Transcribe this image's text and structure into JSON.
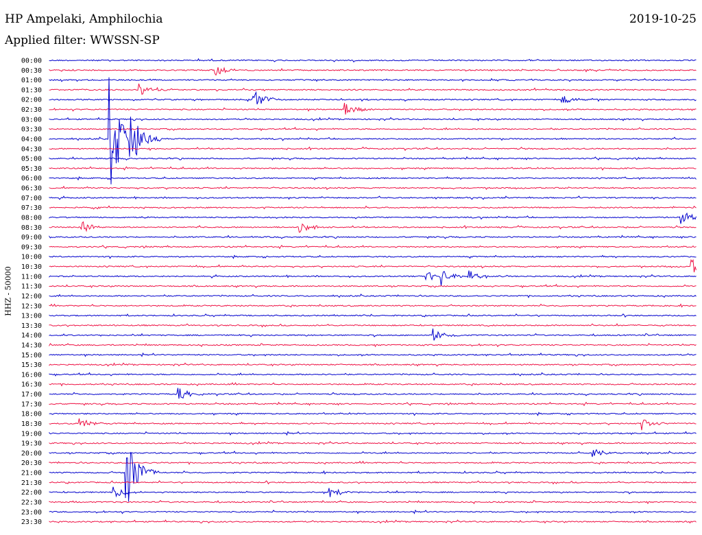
{
  "header": {
    "station": "HP Ampelaki, Amphilochia",
    "filter": "Applied filter: WWSSN-SP",
    "date": "2019-10-25"
  },
  "chart_data": {
    "type": "line",
    "title": "HP Ampelaki, Amphilochia",
    "subtitle": "Applied filter: WWSSN-SP",
    "ylabel": "HHZ - 50000",
    "colors": {
      "even": "#0000cc",
      "odd": "#ee1144"
    },
    "rows": [
      "00:00",
      "00:30",
      "01:00",
      "01:30",
      "02:00",
      "02:30",
      "03:00",
      "03:30",
      "04:00",
      "04:30",
      "05:00",
      "05:30",
      "06:00",
      "06:30",
      "07:00",
      "07:30",
      "08:00",
      "08:30",
      "09:00",
      "09:30",
      "10:00",
      "10:30",
      "11:00",
      "11:30",
      "12:00",
      "12:30",
      "13:00",
      "13:30",
      "14:00",
      "14:30",
      "15:00",
      "15:30",
      "16:00",
      "16:30",
      "17:00",
      "17:30",
      "18:00",
      "18:30",
      "19:00",
      "19:30",
      "20:00",
      "20:30",
      "21:00",
      "21:30",
      "22:00",
      "22:30",
      "23:00",
      "23:30"
    ],
    "x_minutes": [
      0,
      30
    ],
    "events": [
      {
        "row": "00:30",
        "minute": 7.7,
        "amplitude": 0.6
      },
      {
        "row": "01:30",
        "minute": 4.2,
        "amplitude": 0.6
      },
      {
        "row": "02:00",
        "minute": 9.5,
        "amplitude": 0.9
      },
      {
        "row": "02:00",
        "minute": 23.8,
        "amplitude": 0.5
      },
      {
        "row": "02:30",
        "minute": 13.7,
        "amplitude": 0.7
      },
      {
        "row": "04:00",
        "minute": 2.8,
        "amplitude": 6.0
      },
      {
        "row": "04:00",
        "minute": 3.7,
        "amplitude": 4.0
      },
      {
        "row": "08:00",
        "minute": 29.3,
        "amplitude": 0.8
      },
      {
        "row": "08:30",
        "minute": 1.5,
        "amplitude": 0.6
      },
      {
        "row": "08:30",
        "minute": 11.6,
        "amplitude": 0.8
      },
      {
        "row": "10:30",
        "minute": 29.8,
        "amplitude": 0.8
      },
      {
        "row": "11:00",
        "minute": 17.5,
        "amplitude": 0.6
      },
      {
        "row": "11:00",
        "minute": 18.2,
        "amplitude": 0.7
      },
      {
        "row": "11:00",
        "minute": 19.5,
        "amplitude": 0.7
      },
      {
        "row": "14:00",
        "minute": 17.8,
        "amplitude": 0.7
      },
      {
        "row": "17:00",
        "minute": 6.0,
        "amplitude": 0.6
      },
      {
        "row": "18:30",
        "minute": 1.4,
        "amplitude": 0.6
      },
      {
        "row": "18:30",
        "minute": 27.5,
        "amplitude": 0.6
      },
      {
        "row": "20:00",
        "minute": 25.2,
        "amplitude": 0.5
      },
      {
        "row": "21:00",
        "minute": 3.5,
        "amplitude": 5.0
      },
      {
        "row": "22:00",
        "minute": 3.0,
        "amplitude": 0.7
      },
      {
        "row": "22:00",
        "minute": 13.0,
        "amplitude": 0.6
      }
    ]
  }
}
